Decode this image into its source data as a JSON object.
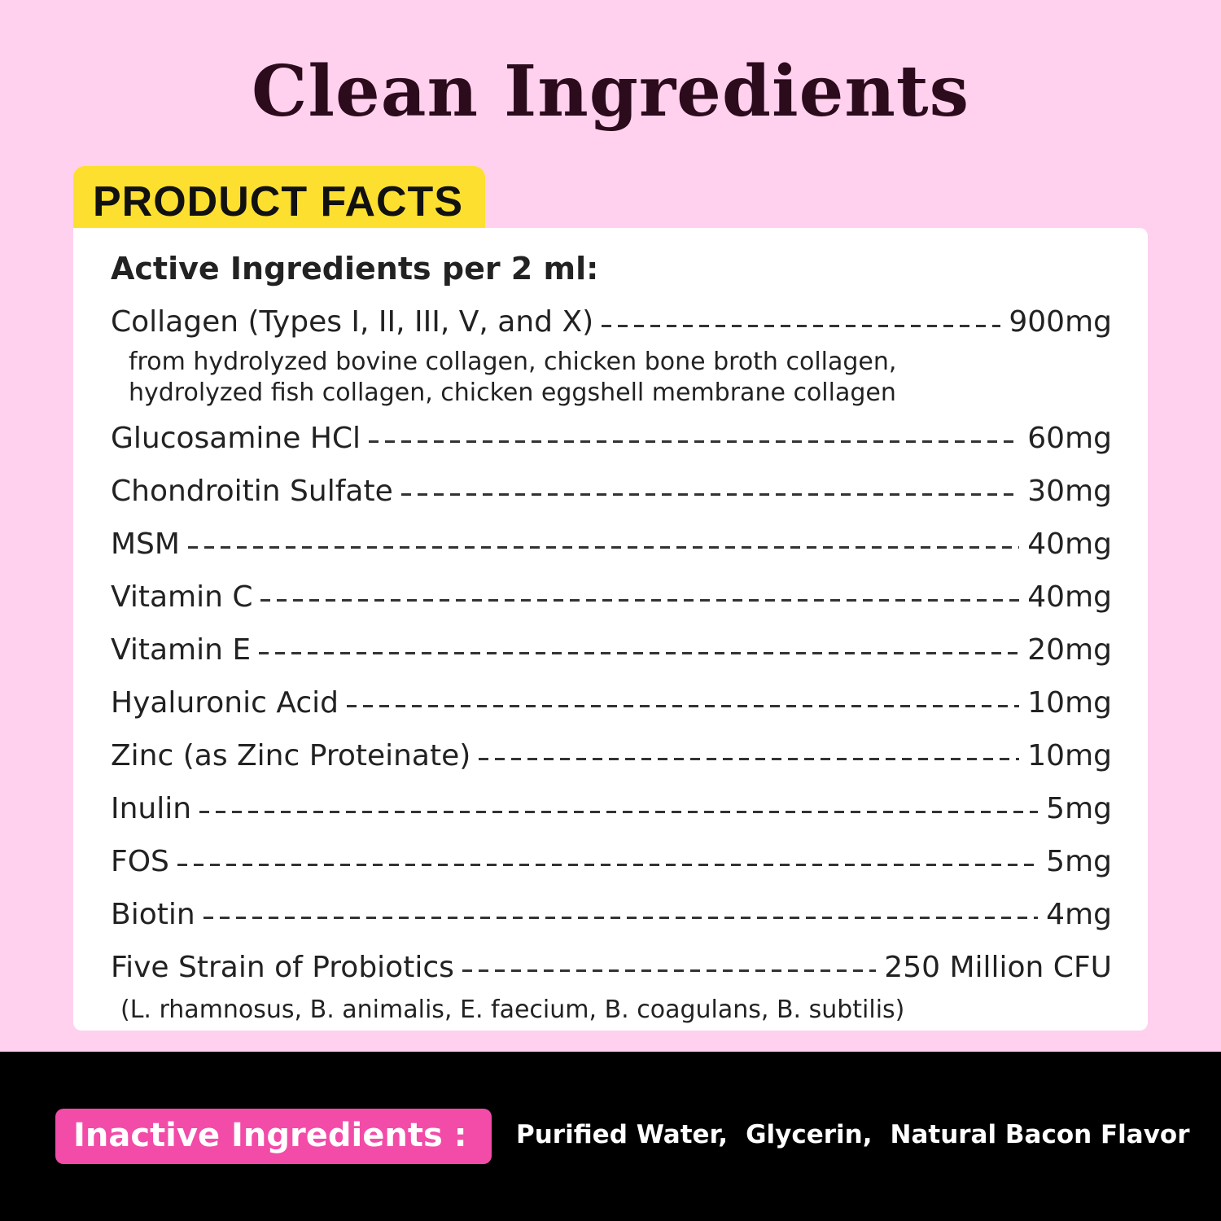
{
  "title": "Clean Ingredients",
  "tab_label": "PRODUCT FACTS",
  "active_title": "Active Ingredients per 2 ml:",
  "ingredients": [
    {
      "name": "Collagen (Types I, II, III, V, and X)",
      "amount": "900mg",
      "sub": [
        "from hydrolyzed bovine collagen, chicken bone broth collagen,",
        "hydrolyzed fish collagen, chicken eggshell membrane collagen"
      ]
    },
    {
      "name": "Glucosamine HCl",
      "amount": "60mg"
    },
    {
      "name": "Chondroitin Sulfate",
      "amount": "30mg"
    },
    {
      "name": "MSM",
      "amount": "40mg"
    },
    {
      "name": "Vitamin C",
      "amount": "40mg"
    },
    {
      "name": "Vitamin E",
      "amount": "20mg"
    },
    {
      "name": "Hyaluronic Acid",
      "amount": "10mg"
    },
    {
      "name": "Zinc (as Zinc Proteinate)",
      "amount": "10mg"
    },
    {
      "name": "Inulin",
      "amount": "5mg"
    },
    {
      "name": "FOS",
      "amount": "5mg"
    },
    {
      "name": "Biotin",
      "amount": "4mg"
    },
    {
      "name": "Five Strain of Probiotics",
      "amount": "250 Million CFU",
      "sub": [
        "(L. rhamnosus, B. animalis, E. faecium, B. coagulans, B. subtilis)"
      ]
    }
  ],
  "inactive": {
    "label": "Inactive Ingredients :",
    "items": [
      "Purified Water,",
      "Glycerin,",
      "Natural Bacon Flavor"
    ]
  },
  "colors": {
    "background": "#ffd1ee",
    "title": "#2b0b1c",
    "tab": "#fde02f",
    "inactive_label": "#f24ba8",
    "band": "#000000"
  }
}
